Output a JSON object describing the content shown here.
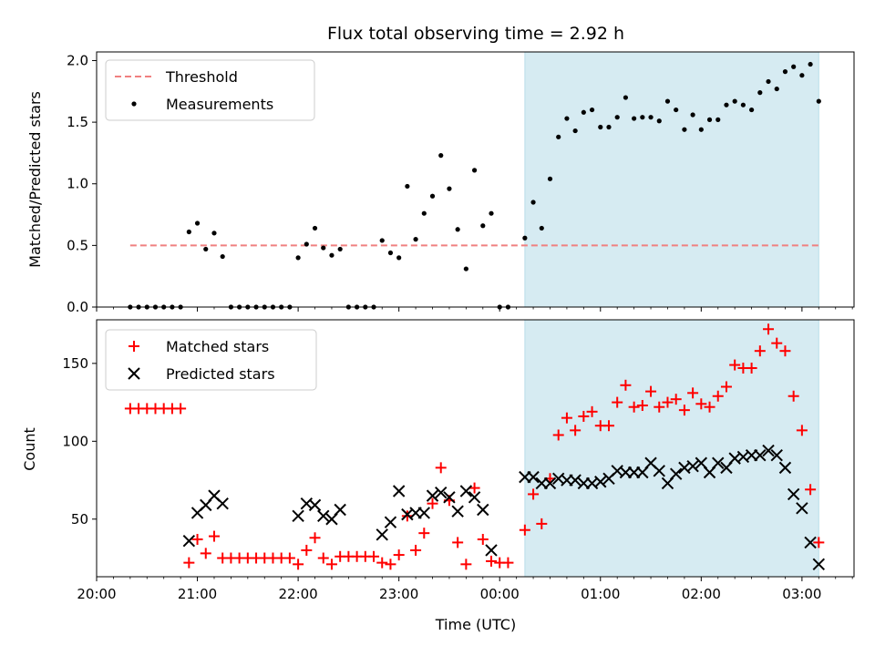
{
  "title": "Flux total observing time = 2.92 h",
  "colors": {
    "threshold": "#f08080",
    "measurement": "#000000",
    "matched": "#ff0000",
    "predicted": "#000000",
    "span_fill": "#add8e6"
  },
  "chart_data": [
    {
      "type": "scatter",
      "title": "Flux total observing time = 2.92 h",
      "xlabel": "",
      "ylabel": "Matched/Predicted stars",
      "xlim": [
        "20:00",
        "03:31"
      ],
      "ylim": [
        0,
        2.07
      ],
      "yticks": [
        "0.0",
        "0.5",
        "1.0",
        "1.5",
        "2.0"
      ],
      "xticks": [
        "20:00",
        "21:00",
        "22:00",
        "23:00",
        "00:00",
        "01:00",
        "02:00",
        "03:00"
      ],
      "grid": false,
      "legend_position": "top-left",
      "shaded_span": [
        "00:15",
        "03:10"
      ],
      "threshold": {
        "name": "Threshold",
        "y": 0.5,
        "x_range": [
          "20:20",
          "03:10"
        ]
      },
      "series": [
        {
          "name": "Measurements",
          "points": [
            [
              "20:20",
              0
            ],
            [
              "20:25",
              0
            ],
            [
              "20:30",
              0
            ],
            [
              "20:35",
              0
            ],
            [
              "20:40",
              0
            ],
            [
              "20:45",
              0
            ],
            [
              "20:50",
              0
            ],
            [
              "20:55",
              0.61
            ],
            [
              "21:00",
              0.68
            ],
            [
              "21:05",
              0.47
            ],
            [
              "21:10",
              0.6
            ],
            [
              "21:15",
              0.41
            ],
            [
              "21:20",
              0
            ],
            [
              "21:25",
              0
            ],
            [
              "21:30",
              0
            ],
            [
              "21:35",
              0
            ],
            [
              "21:40",
              0
            ],
            [
              "21:45",
              0
            ],
            [
              "21:50",
              0
            ],
            [
              "21:55",
              0
            ],
            [
              "22:00",
              0.4
            ],
            [
              "22:05",
              0.51
            ],
            [
              "22:10",
              0.64
            ],
            [
              "22:15",
              0.48
            ],
            [
              "22:20",
              0.42
            ],
            [
              "22:25",
              0.47
            ],
            [
              "22:30",
              0
            ],
            [
              "22:35",
              0
            ],
            [
              "22:40",
              0
            ],
            [
              "22:45",
              0
            ],
            [
              "22:50",
              0.54
            ],
            [
              "22:55",
              0.44
            ],
            [
              "23:00",
              0.4
            ],
            [
              "23:05",
              0.98
            ],
            [
              "23:10",
              0.55
            ],
            [
              "23:15",
              0.76
            ],
            [
              "23:20",
              0.9
            ],
            [
              "23:25",
              1.23
            ],
            [
              "23:30",
              0.96
            ],
            [
              "23:35",
              0.63
            ],
            [
              "23:40",
              0.31
            ],
            [
              "23:45",
              1.11
            ],
            [
              "23:50",
              0.66
            ],
            [
              "23:55",
              0.76
            ],
            [
              "00:00",
              0
            ],
            [
              "00:05",
              0
            ],
            [
              "00:15",
              0.56
            ],
            [
              "00:20",
              0.85
            ],
            [
              "00:25",
              0.64
            ],
            [
              "00:30",
              1.04
            ],
            [
              "00:35",
              1.38
            ],
            [
              "00:40",
              1.53
            ],
            [
              "00:45",
              1.43
            ],
            [
              "00:50",
              1.58
            ],
            [
              "00:55",
              1.6
            ],
            [
              "01:00",
              1.46
            ],
            [
              "01:05",
              1.46
            ],
            [
              "01:10",
              1.54
            ],
            [
              "01:15",
              1.7
            ],
            [
              "01:20",
              1.53
            ],
            [
              "01:25",
              1.54
            ],
            [
              "01:30",
              1.54
            ],
            [
              "01:35",
              1.51
            ],
            [
              "01:40",
              1.67
            ],
            [
              "01:45",
              1.6
            ],
            [
              "01:50",
              1.44
            ],
            [
              "01:55",
              1.56
            ],
            [
              "02:00",
              1.44
            ],
            [
              "02:05",
              1.52
            ],
            [
              "02:10",
              1.52
            ],
            [
              "02:15",
              1.64
            ],
            [
              "02:20",
              1.67
            ],
            [
              "02:25",
              1.64
            ],
            [
              "02:30",
              1.6
            ],
            [
              "02:35",
              1.74
            ],
            [
              "02:40",
              1.83
            ],
            [
              "02:45",
              1.77
            ],
            [
              "02:50",
              1.91
            ],
            [
              "02:55",
              1.95
            ],
            [
              "03:00",
              1.88
            ],
            [
              "03:05",
              1.97
            ],
            [
              "03:10",
              1.67
            ]
          ]
        }
      ]
    },
    {
      "type": "scatter",
      "xlabel": "Time (UTC)",
      "ylabel": "Count",
      "xlim": [
        "20:00",
        "03:31"
      ],
      "ylim": [
        13,
        178
      ],
      "yticks": [
        "50",
        "100",
        "150"
      ],
      "xticks": [
        "20:00",
        "21:00",
        "22:00",
        "23:00",
        "00:00",
        "01:00",
        "02:00",
        "03:00"
      ],
      "grid": false,
      "legend_position": "top-left",
      "shaded_span": [
        "00:15",
        "03:10"
      ],
      "series": [
        {
          "name": "Matched stars",
          "marker": "plus",
          "points": [
            [
              "20:20",
              121
            ],
            [
              "20:25",
              121
            ],
            [
              "20:30",
              121
            ],
            [
              "20:35",
              121
            ],
            [
              "20:40",
              121
            ],
            [
              "20:45",
              121
            ],
            [
              "20:50",
              121
            ],
            [
              "20:55",
              22
            ],
            [
              "21:00",
              37
            ],
            [
              "21:05",
              28
            ],
            [
              "21:10",
              39
            ],
            [
              "21:15",
              25
            ],
            [
              "21:20",
              25
            ],
            [
              "21:25",
              25
            ],
            [
              "21:30",
              25
            ],
            [
              "21:35",
              25
            ],
            [
              "21:40",
              25
            ],
            [
              "21:45",
              25
            ],
            [
              "21:50",
              25
            ],
            [
              "21:55",
              25
            ],
            [
              "22:00",
              21
            ],
            [
              "22:05",
              30
            ],
            [
              "22:10",
              38
            ],
            [
              "22:15",
              25
            ],
            [
              "22:20",
              21
            ],
            [
              "22:25",
              26
            ],
            [
              "22:30",
              26
            ],
            [
              "22:35",
              26
            ],
            [
              "22:40",
              26
            ],
            [
              "22:45",
              26
            ],
            [
              "22:50",
              22
            ],
            [
              "22:55",
              21
            ],
            [
              "23:00",
              27
            ],
            [
              "23:05",
              52
            ],
            [
              "23:10",
              30
            ],
            [
              "23:15",
              41
            ],
            [
              "23:20",
              60
            ],
            [
              "23:25",
              83
            ],
            [
              "23:30",
              62
            ],
            [
              "23:35",
              35
            ],
            [
              "23:40",
              21
            ],
            [
              "23:45",
              70
            ],
            [
              "23:50",
              37
            ],
            [
              "23:55",
              23
            ],
            [
              "00:00",
              22
            ],
            [
              "00:05",
              22
            ],
            [
              "00:15",
              43
            ],
            [
              "00:20",
              66
            ],
            [
              "00:25",
              47
            ],
            [
              "00:30",
              76
            ],
            [
              "00:35",
              104
            ],
            [
              "00:40",
              115
            ],
            [
              "00:45",
              107
            ],
            [
              "00:50",
              116
            ],
            [
              "00:55",
              119
            ],
            [
              "01:00",
              110
            ],
            [
              "01:05",
              110
            ],
            [
              "01:10",
              125
            ],
            [
              "01:15",
              136
            ],
            [
              "01:20",
              122
            ],
            [
              "01:25",
              123
            ],
            [
              "01:30",
              132
            ],
            [
              "01:35",
              122
            ],
            [
              "01:40",
              125
            ],
            [
              "01:45",
              127
            ],
            [
              "01:50",
              120
            ],
            [
              "01:55",
              131
            ],
            [
              "02:00",
              124
            ],
            [
              "02:05",
              122
            ],
            [
              "02:10",
              129
            ],
            [
              "02:15",
              135
            ],
            [
              "02:20",
              149
            ],
            [
              "02:25",
              147
            ],
            [
              "02:30",
              147
            ],
            [
              "02:35",
              158
            ],
            [
              "02:40",
              172
            ],
            [
              "02:45",
              163
            ],
            [
              "02:50",
              158
            ],
            [
              "02:55",
              129
            ],
            [
              "03:00",
              107
            ],
            [
              "03:05",
              69
            ],
            [
              "03:10",
              35
            ]
          ]
        },
        {
          "name": "Predicted stars",
          "marker": "x",
          "points": [
            [
              "20:55",
              36
            ],
            [
              "21:00",
              54
            ],
            [
              "21:05",
              59
            ],
            [
              "21:10",
              65
            ],
            [
              "21:15",
              60
            ],
            [
              "22:00",
              52
            ],
            [
              "22:05",
              60
            ],
            [
              "22:10",
              59
            ],
            [
              "22:15",
              52
            ],
            [
              "22:20",
              50
            ],
            [
              "22:25",
              56
            ],
            [
              "22:50",
              40
            ],
            [
              "22:55",
              48
            ],
            [
              "23:00",
              68
            ],
            [
              "23:05",
              53
            ],
            [
              "23:10",
              54
            ],
            [
              "23:15",
              54
            ],
            [
              "23:20",
              65
            ],
            [
              "23:25",
              67
            ],
            [
              "23:30",
              64
            ],
            [
              "23:35",
              55
            ],
            [
              "23:40",
              68
            ],
            [
              "23:45",
              64
            ],
            [
              "23:50",
              56
            ],
            [
              "23:55",
              30
            ],
            [
              "00:15",
              77
            ],
            [
              "00:20",
              77
            ],
            [
              "00:25",
              73
            ],
            [
              "00:30",
              73
            ],
            [
              "00:35",
              76
            ],
            [
              "00:40",
              75
            ],
            [
              "00:45",
              75
            ],
            [
              "00:50",
              73
            ],
            [
              "00:55",
              73
            ],
            [
              "01:00",
              74
            ],
            [
              "01:05",
              76
            ],
            [
              "01:10",
              81
            ],
            [
              "01:15",
              80
            ],
            [
              "01:20",
              80
            ],
            [
              "01:25",
              80
            ],
            [
              "01:30",
              86
            ],
            [
              "01:35",
              81
            ],
            [
              "01:40",
              73
            ],
            [
              "01:45",
              79
            ],
            [
              "01:50",
              83
            ],
            [
              "01:55",
              84
            ],
            [
              "02:00",
              86
            ],
            [
              "02:05",
              80
            ],
            [
              "02:10",
              86
            ],
            [
              "02:15",
              83
            ],
            [
              "02:20",
              89
            ],
            [
              "02:25",
              90
            ],
            [
              "02:30",
              91
            ],
            [
              "02:35",
              91
            ],
            [
              "02:40",
              94
            ],
            [
              "02:45",
              91
            ],
            [
              "02:50",
              83
            ],
            [
              "02:55",
              66
            ],
            [
              "03:00",
              57
            ],
            [
              "03:05",
              35
            ],
            [
              "03:10",
              21
            ]
          ]
        }
      ]
    }
  ]
}
